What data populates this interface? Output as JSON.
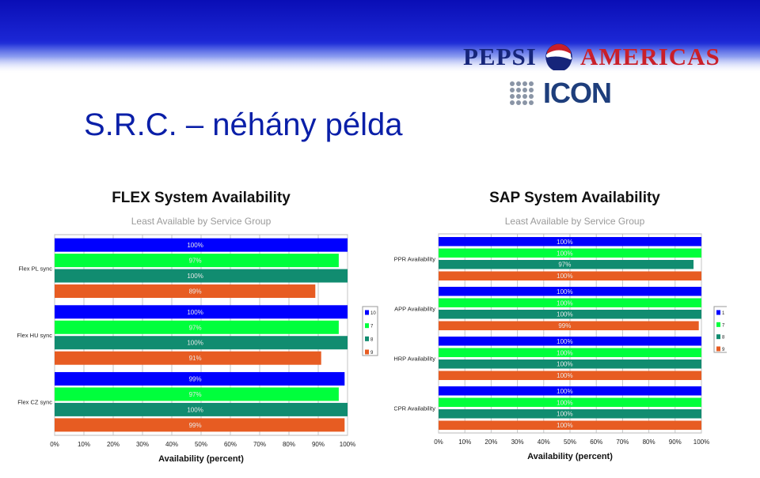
{
  "slide": {
    "title": "S.R.C. – néhány példa"
  },
  "logos": {
    "pepsi_text": "PEPSI",
    "americas_text": "AMERICAS",
    "icon_text": "ICON"
  },
  "colors": {
    "banner": "#1b26d4",
    "title": "#0a1fa8",
    "series": [
      "#0000ff",
      "#00ff3c",
      "#118c70",
      "#e75c22"
    ]
  },
  "chart_data": [
    {
      "type": "bar",
      "orientation": "horizontal",
      "title": "FLEX System Availability",
      "subtitle": "Least Available by Service Group",
      "xlabel": "Availability (percent)",
      "ylabel": "",
      "xlim": [
        0,
        100
      ],
      "xticks": [
        "0%",
        "10%",
        "20%",
        "30%",
        "40%",
        "50%",
        "60%",
        "70%",
        "80%",
        "90%",
        "100%"
      ],
      "grid": true,
      "legend": "right",
      "categories": [
        "Flex PL sync",
        "Flex HU sync",
        "Flex CZ sync"
      ],
      "series": [
        {
          "name": "10",
          "values": [
            100,
            100,
            99
          ],
          "labels": [
            "100%",
            "100%",
            "99%"
          ]
        },
        {
          "name": "7",
          "values": [
            97,
            97,
            97
          ],
          "labels": [
            "97%",
            "97%",
            "97%"
          ]
        },
        {
          "name": "8",
          "values": [
            100,
            100,
            100
          ],
          "labels": [
            "100%",
            "100%",
            "100%"
          ]
        },
        {
          "name": "9",
          "values": [
            89,
            91,
            99
          ],
          "labels": [
            "89%",
            "91%",
            "99%"
          ]
        }
      ]
    },
    {
      "type": "bar",
      "orientation": "horizontal",
      "title": "SAP System Availability",
      "subtitle": "Least Available by Service Group",
      "xlabel": "Availability (percent)",
      "ylabel": "",
      "xlim": [
        0,
        100
      ],
      "xticks": [
        "0%",
        "10%",
        "20%",
        "30%",
        "40%",
        "50%",
        "60%",
        "70%",
        "80%",
        "90%",
        "100%"
      ],
      "grid": true,
      "legend": "right",
      "categories": [
        "PPR Availability",
        "APP Availability",
        "HRP Availability",
        "CPR Availability"
      ],
      "series": [
        {
          "name": "1",
          "values": [
            100,
            100,
            100,
            100
          ],
          "labels": [
            "100%",
            "100%",
            "100%",
            "100%"
          ]
        },
        {
          "name": "7",
          "values": [
            100,
            100,
            100,
            100
          ],
          "labels": [
            "100%",
            "100%",
            "100%",
            "100%"
          ]
        },
        {
          "name": "8",
          "values": [
            97,
            100,
            100,
            100
          ],
          "labels": [
            "97%",
            "100%",
            "100%",
            "100%"
          ]
        },
        {
          "name": "9",
          "values": [
            100,
            99,
            100,
            100
          ],
          "labels": [
            "100%",
            "99%",
            "100%",
            "100%"
          ]
        }
      ]
    }
  ]
}
